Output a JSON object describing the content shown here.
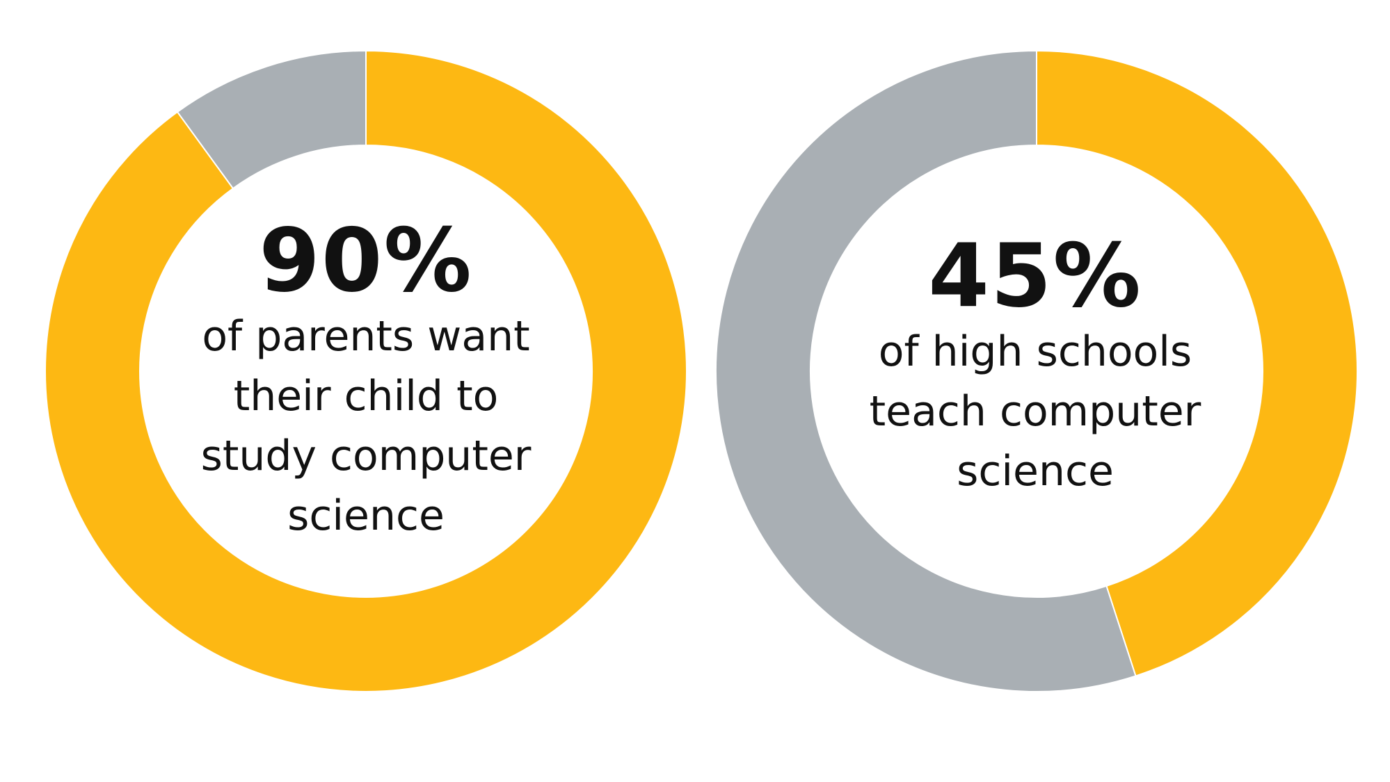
{
  "chart_data": [
    {
      "type": "pie",
      "variant": "donut",
      "slices": [
        {
          "label": "",
          "value": 90,
          "color": "#FDB813"
        },
        {
          "label": "",
          "value": 10,
          "color": "#A9AFB4"
        }
      ],
      "center_value": "90%",
      "center_caption": [
        "of parents want",
        "their child to",
        "study computer",
        "science"
      ]
    },
    {
      "type": "pie",
      "variant": "donut",
      "slices": [
        {
          "label": "",
          "value": 45,
          "color": "#FDB813"
        },
        {
          "label": "",
          "value": 55,
          "color": "#A9AFB4"
        }
      ],
      "center_value": "45%",
      "center_caption": [
        "of high schools",
        "teach computer",
        "science"
      ]
    }
  ]
}
